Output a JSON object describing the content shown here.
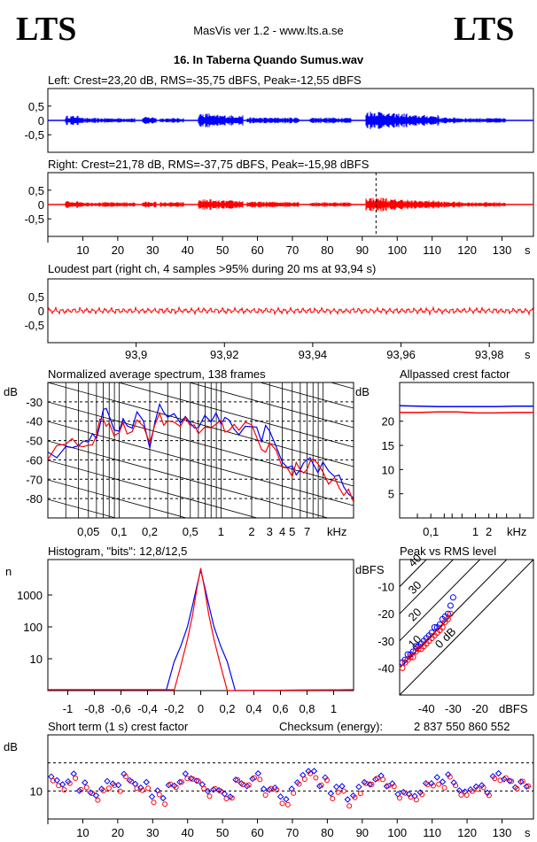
{
  "header": {
    "logo_left": "LTS",
    "logo_right": "LTS",
    "app_title": "MasVis ver 1.2 - www.lts.a.se",
    "track_title": "16. In Taberna Quando Sumus.wav"
  },
  "colors": {
    "left": "#0000ff",
    "right": "#ff0000",
    "axis": "#000000"
  },
  "chart_data": [
    {
      "type": "line",
      "id": "left",
      "title": "Left: Crest=23,20 dB, RMS=-35,75 dBFS, Peak=-12,55 dBFS",
      "yticks": [
        "0,5",
        "0",
        "-0,5"
      ],
      "ylim": [
        -1,
        1
      ],
      "xlim": [
        0,
        139
      ],
      "bursts": [
        [
          5,
          10,
          0.08
        ],
        [
          10,
          25,
          0.04
        ],
        [
          27,
          31,
          0.06
        ],
        [
          32,
          39,
          0.04
        ],
        [
          43,
          47,
          0.12
        ],
        [
          47,
          56,
          0.09
        ],
        [
          57,
          72,
          0.05
        ],
        [
          75,
          87,
          0.05
        ],
        [
          91,
          97,
          0.16
        ],
        [
          97,
          103,
          0.12
        ],
        [
          103,
          112,
          0.09
        ],
        [
          112,
          118,
          0.05
        ],
        [
          118,
          131,
          0.04
        ]
      ]
    },
    {
      "type": "line",
      "id": "right",
      "title": "Right: Crest=21,78 dB, RMS=-37,75 dBFS, Peak=-15,98 dBFS",
      "yticks": [
        "0,5",
        "0",
        "-0,5"
      ],
      "ylim": [
        -1,
        1
      ],
      "xlim": [
        0,
        139
      ],
      "marker_x": 93.94,
      "xticks": [
        "10",
        "20",
        "30",
        "40",
        "50",
        "60",
        "70",
        "80",
        "90",
        "100",
        "110",
        "120",
        "130"
      ],
      "xunit": "s",
      "bursts": [
        [
          5,
          10,
          0.06
        ],
        [
          10,
          25,
          0.04
        ],
        [
          27,
          31,
          0.05
        ],
        [
          32,
          39,
          0.04
        ],
        [
          43,
          47,
          0.09
        ],
        [
          47,
          56,
          0.07
        ],
        [
          57,
          72,
          0.05
        ],
        [
          75,
          87,
          0.04
        ],
        [
          91,
          97,
          0.12
        ],
        [
          97,
          103,
          0.09
        ],
        [
          103,
          112,
          0.07
        ],
        [
          112,
          118,
          0.05
        ],
        [
          118,
          131,
          0.04
        ]
      ]
    },
    {
      "type": "line",
      "id": "loudest",
      "title": "Loudest part (right ch, 4 samples >95% during 20 ms at 93,94 s)",
      "yticks": [
        "0,5",
        "0",
        "-0,5"
      ],
      "ylim": [
        -1,
        1
      ],
      "xlim": [
        93.88,
        93.99
      ],
      "xticks": [
        "93,9",
        "93,92",
        "93,94",
        "93,96",
        "93,98"
      ],
      "xunit": "s",
      "amplitude": 0.03
    },
    {
      "type": "line",
      "id": "spectrum",
      "title": "Normalized average spectrum, 138 frames",
      "ylabel": "dB",
      "yticks": [
        "-30",
        "-40",
        "-50",
        "-60",
        "-70",
        "-80"
      ],
      "ylim": [
        -90,
        -20
      ],
      "xlim_khz": [
        0.02,
        20
      ],
      "xticks": [
        "0,05",
        "0,1",
        "0,2",
        "0,5",
        "1",
        "2",
        "3",
        "4",
        "5",
        "7"
      ],
      "xunit": "kHz",
      "freq_khz": [
        0.02,
        0.03,
        0.04,
        0.05,
        0.06,
        0.07,
        0.08,
        0.1,
        0.12,
        0.15,
        0.2,
        0.25,
        0.3,
        0.4,
        0.5,
        0.6,
        0.8,
        1,
        1.2,
        1.5,
        2,
        2.5,
        3,
        4,
        5,
        6,
        7,
        8,
        10,
        13,
        16,
        20
      ],
      "series": [
        {
          "color": "left",
          "values": [
            -58,
            -52,
            -54,
            -48,
            -46,
            -34,
            -38,
            -44,
            -42,
            -36,
            -52,
            -32,
            -40,
            -38,
            -42,
            -44,
            -40,
            -40,
            -42,
            -44,
            -42,
            -48,
            -46,
            -62,
            -64,
            -64,
            -58,
            -60,
            -64,
            -68,
            -74,
            -80
          ]
        },
        {
          "color": "right",
          "values": [
            -58,
            -53,
            -55,
            -50,
            -48,
            -36,
            -42,
            -46,
            -44,
            -40,
            -54,
            -36,
            -42,
            -40,
            -44,
            -46,
            -42,
            -42,
            -44,
            -46,
            -44,
            -52,
            -50,
            -64,
            -66,
            -66,
            -62,
            -62,
            -66,
            -72,
            -76,
            -82
          ]
        }
      ]
    },
    {
      "type": "line",
      "id": "allpass",
      "title": "Allpassed crest factor",
      "ylabel": "dB",
      "yticks": [
        "20",
        "15",
        "10",
        "5"
      ],
      "ylim": [
        0,
        28
      ],
      "xticks": [
        "0,1",
        "1",
        "2"
      ],
      "xunit": "kHz",
      "series": [
        {
          "color": "left",
          "values": [
            23.2,
            23.1,
            23.0,
            23.0,
            23.0,
            23.0,
            23.1,
            23.1
          ]
        },
        {
          "color": "right",
          "values": [
            21.8,
            21.8,
            21.9,
            21.9,
            21.7,
            21.7,
            21.8,
            21.8
          ]
        }
      ]
    },
    {
      "type": "line",
      "id": "histogram",
      "title": "Histogram, \"bits\": 12,8/12,5",
      "ylabel": "n",
      "yticks": [
        "1000",
        "100",
        "10"
      ],
      "xlim": [
        -1.15,
        1.15
      ],
      "xticks": [
        "-1",
        "-0,8",
        "-0,6",
        "-0,4",
        "-0,2",
        "0",
        "0,2",
        "0,4",
        "0,6",
        "0,8",
        "1"
      ],
      "series": [
        {
          "color": "left",
          "x": [
            -0.26,
            -0.2,
            -0.15,
            -0.1,
            -0.06,
            -0.03,
            0,
            0.03,
            0.06,
            0.1,
            0.15,
            0.2,
            0.26
          ],
          "values": [
            1,
            8,
            25,
            100,
            500,
            1800,
            6000,
            1800,
            500,
            100,
            25,
            8,
            1
          ]
        },
        {
          "color": "right",
          "x": [
            -0.2,
            -0.15,
            -0.1,
            -0.06,
            -0.03,
            0,
            0.03,
            0.06,
            0.1,
            0.15,
            0.2
          ],
          "values": [
            1,
            6,
            40,
            250,
            1500,
            7000,
            1500,
            250,
            40,
            6,
            1
          ]
        }
      ]
    },
    {
      "type": "scatter",
      "id": "peakrms",
      "title": "Peak vs RMS level",
      "ylabel": "dBFS",
      "yticks": [
        "-10",
        "-20",
        "-30",
        "-40"
      ],
      "xticks": [
        "-40",
        "-30",
        "-20"
      ],
      "xunit": "dBFS",
      "xlim": [
        -50,
        0
      ],
      "ylim": [
        -50,
        0
      ],
      "diag_labels": [
        "40",
        "30",
        "20",
        "10",
        "0 dB"
      ],
      "series": [
        {
          "color": "left",
          "x": [
            -49,
            -48,
            -47,
            -46,
            -45,
            -44,
            -43,
            -42,
            -41,
            -40,
            -39,
            -38,
            -37,
            -36,
            -35,
            -34,
            -33,
            -32,
            -31,
            -30
          ],
          "values": [
            -38,
            -37,
            -35,
            -35,
            -34,
            -32,
            -32,
            -31,
            -30,
            -29,
            -28,
            -27,
            -25,
            -25,
            -24,
            -22,
            -21,
            -20,
            -17,
            -14
          ]
        },
        {
          "color": "right",
          "x": [
            -49,
            -48,
            -47,
            -46,
            -45,
            -44,
            -43,
            -42,
            -41,
            -40,
            -39,
            -38,
            -37,
            -36,
            -35,
            -34,
            -33,
            -32,
            -31
          ],
          "values": [
            -40,
            -38,
            -37,
            -36,
            -36,
            -34,
            -33,
            -33,
            -32,
            -31,
            -30,
            -29,
            -28,
            -27,
            -26,
            -25,
            -23,
            -22,
            -20
          ]
        }
      ]
    },
    {
      "type": "scatter",
      "id": "crest",
      "title": "Short term (1 s) crest factor",
      "checksum_label": "Checksum (energy):",
      "checksum_value": "2 837 550 860 552",
      "ylabel": "dB",
      "yticks": [
        "10"
      ],
      "xlim": [
        0,
        139
      ],
      "xticks": [
        "10",
        "20",
        "30",
        "40",
        "50",
        "60",
        "70",
        "80",
        "90",
        "100",
        "110",
        "120",
        "130"
      ],
      "xunit": "s"
    }
  ]
}
